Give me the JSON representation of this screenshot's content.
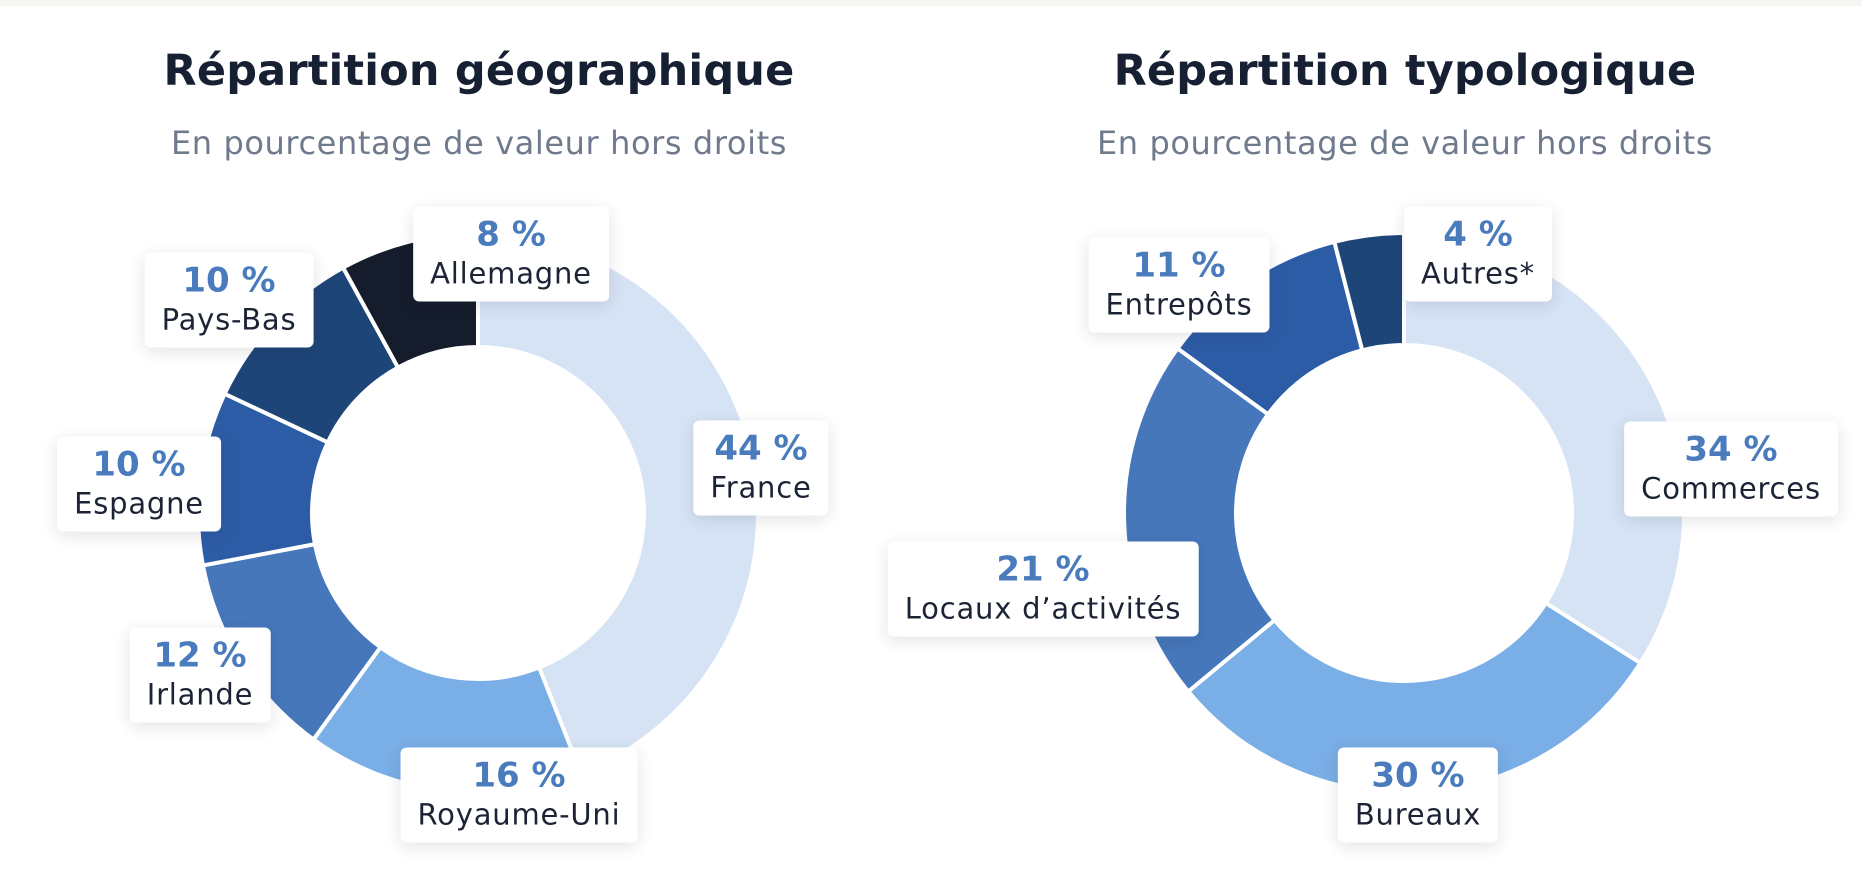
{
  "chart_data": [
    {
      "type": "pie",
      "title": "Répartition géographique",
      "subtitle": "En pourcentage de valeur hors droits",
      "donut": true,
      "slices": [
        {
          "label": "France",
          "value": 44,
          "value_label": "44 %",
          "color": "#d6e3f5"
        },
        {
          "label": "Royaume-Uni",
          "value": 16,
          "value_label": "16 %",
          "color": "#7aaee6"
        },
        {
          "label": "Irlande",
          "value": 12,
          "value_label": "12 %",
          "color": "#4677bb"
        },
        {
          "label": "Espagne",
          "value": 10,
          "value_label": "10 %",
          "color": "#2d5ca6"
        },
        {
          "label": "Pays-Bas",
          "value": 10,
          "value_label": "10 %",
          "color": "#1e4578"
        },
        {
          "label": "Allemagne",
          "value": 8,
          "value_label": "8 %",
          "color": "#151c2c"
        }
      ]
    },
    {
      "type": "pie",
      "title": "Répartition typologique",
      "subtitle": "En pourcentage de valeur hors droits",
      "donut": true,
      "slices": [
        {
          "label": "Commerces",
          "value": 34,
          "value_label": "34 %",
          "color": "#d6e3f5"
        },
        {
          "label": "Bureaux",
          "value": 30,
          "value_label": "30 %",
          "color": "#7aaee6"
        },
        {
          "label": "Locaux d’activités",
          "value": 21,
          "value_label": "21 %",
          "color": "#4677bb"
        },
        {
          "label": "Entrepôts",
          "value": 11,
          "value_label": "11 %",
          "color": "#2d5ca6"
        },
        {
          "label": "Autres*",
          "value": 4,
          "value_label": "4 %",
          "color": "#1e4578"
        }
      ]
    }
  ]
}
